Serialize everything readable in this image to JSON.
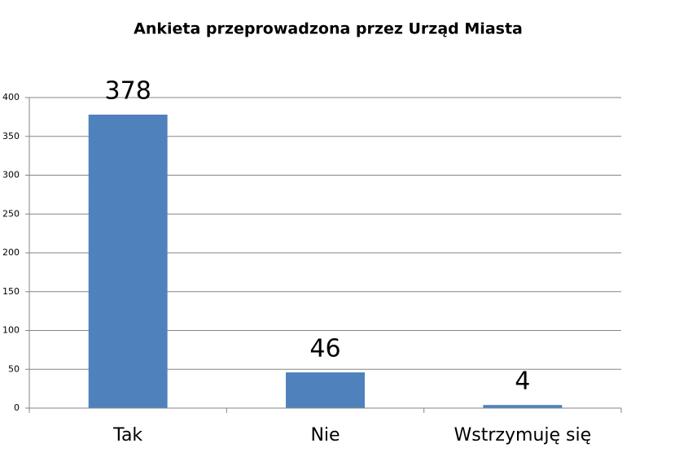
{
  "chart_data": {
    "type": "bar",
    "title": "Ankieta przeprowadzona przez Urząd Miasta",
    "categories": [
      "Tak",
      "Nie",
      "Wstrzymuję się"
    ],
    "values": [
      378,
      46,
      4
    ],
    "color": "#4f81bd",
    "ylim": [
      0,
      400
    ],
    "yticks": [
      0,
      50,
      100,
      150,
      200,
      250,
      300,
      350,
      400
    ],
    "grid": true
  }
}
